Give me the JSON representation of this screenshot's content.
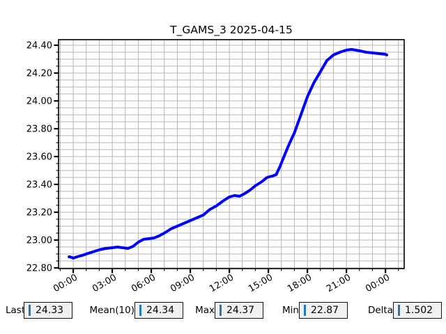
{
  "chart_data": {
    "type": "line",
    "title": "T_GAMS_3 2025-04-15",
    "xlabel": "",
    "ylabel": "",
    "grid": true,
    "grid_color": "#b4b4b4",
    "frame_color": "#000000",
    "legend": "none",
    "xlim_hours": [
      -1.13,
      25.44
    ],
    "ylim": [
      22.795,
      24.44
    ],
    "x_major_hours": [
      0,
      3,
      6,
      9,
      12,
      15,
      18,
      21,
      24
    ],
    "x_tick_labels": [
      "00:00",
      "03:00",
      "06:00",
      "09:00",
      "12:00",
      "15:00",
      "18:00",
      "21:00",
      "00:00"
    ],
    "x_minor_step_hours": 1,
    "y_major_ticks": [
      22.8,
      23.0,
      23.2,
      23.4,
      23.6,
      23.8,
      24.0,
      24.2,
      24.4
    ],
    "y_tick_labels": [
      "22.80",
      "23.00",
      "23.20",
      "23.40",
      "23.60",
      "23.80",
      "24.00",
      "24.20",
      "24.40"
    ],
    "y_minor_step": 0.05,
    "series": [
      {
        "name": "T_GAMS_3",
        "color": "#0000ff",
        "line_width": 4,
        "x_hours_from_midnight": [
          -0.32,
          -0.1,
          0,
          0.3,
          0.7,
          1,
          1.5,
          2,
          2.5,
          3,
          3.4,
          3.8,
          4.2,
          4.6,
          5,
          5.4,
          5.8,
          6.2,
          6.6,
          7,
          7.5,
          8,
          8.5,
          9,
          9.5,
          10,
          10.5,
          11,
          11.5,
          12,
          12.4,
          12.8,
          13.2,
          13.6,
          14,
          14.5,
          14.9,
          15.3,
          15.6,
          15.9,
          16.2,
          16.6,
          17,
          17.5,
          18,
          18.5,
          19,
          19.5,
          20,
          20.5,
          21,
          21.4,
          21.7,
          22,
          22.5,
          23,
          23.5,
          24,
          24.1
        ],
        "values": [
          22.88,
          22.875,
          22.87,
          22.88,
          22.89,
          22.9,
          22.915,
          22.93,
          22.94,
          22.945,
          22.95,
          22.945,
          22.94,
          22.955,
          22.985,
          23.005,
          23.01,
          23.015,
          23.03,
          23.05,
          23.08,
          23.1,
          23.12,
          23.14,
          23.16,
          23.18,
          23.22,
          23.245,
          23.28,
          23.31,
          23.32,
          23.315,
          23.335,
          23.36,
          23.39,
          23.42,
          23.45,
          23.46,
          23.47,
          23.53,
          23.6,
          23.69,
          23.77,
          23.9,
          24.03,
          24.13,
          24.21,
          24.29,
          24.33,
          24.35,
          24.365,
          24.37,
          24.365,
          24.36,
          24.35,
          24.345,
          24.34,
          24.335,
          24.33
        ]
      }
    ]
  },
  "stats_bar": {
    "entry_bg": "#f0f0f0",
    "caret_color": "#2076c8",
    "fields": [
      {
        "label": "Last",
        "value": "24.33"
      },
      {
        "label": "Mean(10)",
        "value": "24.34"
      },
      {
        "label": "Max",
        "value": "24.37"
      },
      {
        "label": "Min",
        "value": "22.87"
      },
      {
        "label": "Delta",
        "value": "1.502"
      }
    ]
  }
}
